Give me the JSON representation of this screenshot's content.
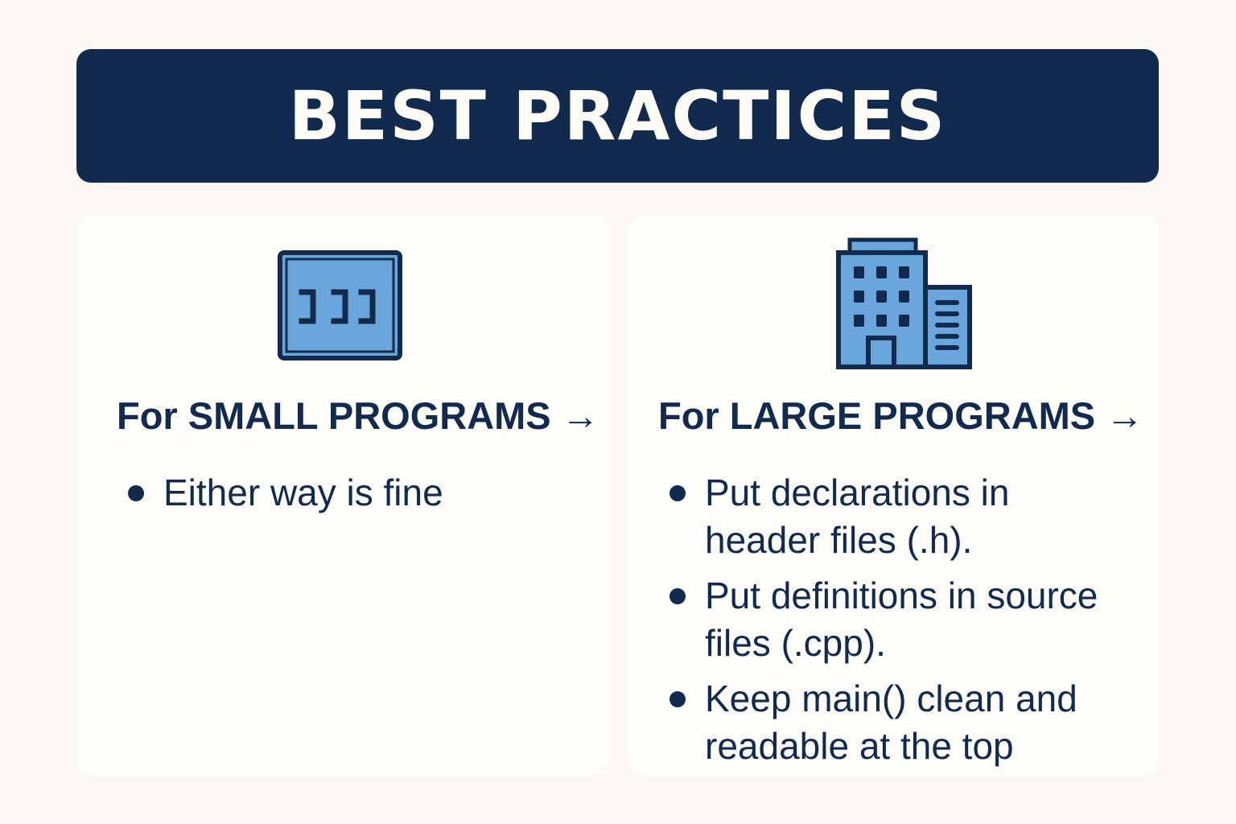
{
  "header": {
    "title": "BEST PRACTICES"
  },
  "small": {
    "icon": "code-window-icon",
    "title_prefix": "For",
    "title_bold": "SMALL PROGRAMS",
    "title_arrow": "→",
    "bullets": [
      "Either way is fine"
    ]
  },
  "large": {
    "icon": "office-building-icon",
    "title_prefix": "For",
    "title_bold": "LARGE PROGRAMS",
    "title_arrow": "→",
    "bullets": [
      "Put declarations in header files (.h).",
      "Put definitions in source files (.cpp).",
      "Keep main() clean and readable at the top"
    ]
  },
  "colors": {
    "navy": "#132a4f",
    "icon_blue": "#6aa6dc",
    "background": "#fcf9f4",
    "card": "#fefdfa"
  }
}
